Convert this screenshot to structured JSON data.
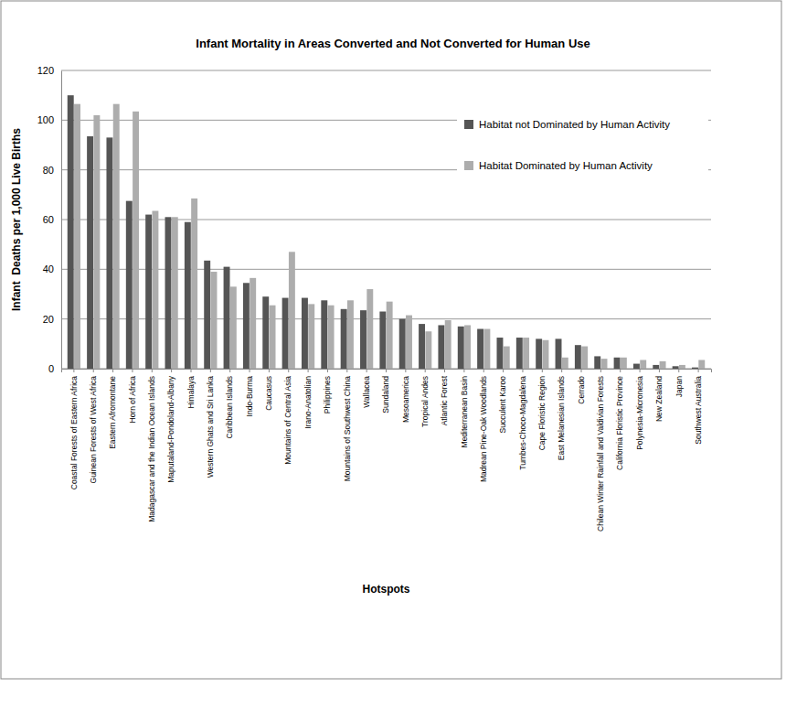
{
  "chart_data": {
    "type": "bar",
    "title": "Infant Mortality in Areas Converted and Not Converted for Human Use",
    "x_label": "Hotspots",
    "y_label": "Infant  Deaths per 1,000 Live Births",
    "categories": [
      "Coastal Forests of Eastern Africa",
      "Guinean Forests of West Africa",
      "Eastern Afromontane",
      "Horn of Africa",
      "Madagascar and the Indian Ocean Islands",
      "Maputaland-Pondoland-Albany",
      "Himalaya",
      "Western Ghats and Sri Lanka",
      "Caribbean Islands",
      "Indo-Burma",
      "Caucasus",
      "Mountains of Central Asia",
      "Irano-Anatolian",
      "Philippines",
      "Mountains of Southwest China",
      "Wallacea",
      "Sundaland",
      "Mesoamerica",
      "Tropical Andes",
      "Atlantic Forest",
      "Mediterranean Basin",
      "Madrean Pine-Oak Woodlands",
      "Succulent Karoo",
      "Tumbes-Choco-Magdalena",
      "Cape Floristic Region",
      "East Melanesian Islands",
      "Cerrado",
      "Chilean Winter Rainfall and Valdivian Forests",
      "California Floristic Province",
      "Polynesia-Micronesia",
      "New Zealand",
      "Japan",
      "Southwest Australia"
    ],
    "series": [
      {
        "name": "Habitat not Dominated by Human Activity",
        "color": "#555555",
        "values": [
          110,
          93.5,
          93,
          67.5,
          62,
          61,
          59,
          43.5,
          41,
          34.5,
          29,
          28.5,
          28.5,
          27.5,
          24,
          23.5,
          23,
          20,
          18,
          17.5,
          17,
          16,
          12.5,
          12.5,
          12,
          12,
          9.5,
          5,
          4.5,
          2,
          1.5,
          1,
          0.5
        ]
      },
      {
        "name": "Habitat Dominated by Human Activity",
        "color": "#adadad",
        "values": [
          106.5,
          102,
          106.5,
          103.5,
          63.5,
          61,
          68.5,
          39,
          33,
          36.5,
          25.5,
          47,
          26,
          25.5,
          27.5,
          32,
          27,
          21.5,
          15,
          19.5,
          17.5,
          16,
          9,
          12.5,
          11.5,
          4.5,
          9,
          4,
          4.5,
          3.5,
          3,
          1.5,
          3.5
        ]
      }
    ],
    "ylim": [
      0,
      120
    ],
    "yticks": [
      0,
      20,
      40,
      60,
      80,
      100,
      120
    ],
    "grid": true,
    "legend": "upper right"
  }
}
